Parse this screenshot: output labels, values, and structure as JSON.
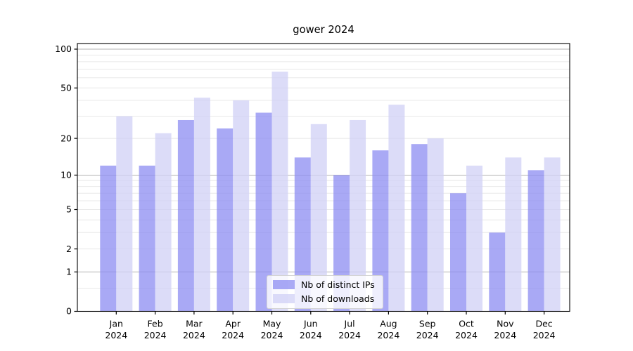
{
  "chart_data": {
    "type": "bar",
    "title": "gower 2024",
    "categories": [
      "Jan 2024",
      "Feb 2024",
      "Mar 2024",
      "Apr 2024",
      "May 2024",
      "Jun 2024",
      "Jul 2024",
      "Aug 2024",
      "Sep 2024",
      "Oct 2024",
      "Nov 2024",
      "Dec 2024"
    ],
    "series": [
      {
        "name": "Nb of distinct IPs",
        "color": "rgba(140,140,242,0.75)",
        "values": [
          12,
          12,
          28,
          24,
          32,
          14,
          10,
          16,
          18,
          7,
          3,
          11
        ]
      },
      {
        "name": "Nb of downloads",
        "color": "rgba(208,208,246,0.75)",
        "values": [
          30,
          22,
          42,
          40,
          67,
          26,
          28,
          37,
          20,
          12,
          14,
          14
        ]
      }
    ],
    "yscale": "log1p",
    "ylim": [
      0,
      111
    ],
    "ytick_labels": [
      0,
      1,
      2,
      5,
      10,
      20,
      50,
      100
    ],
    "major_gridlines": [
      1,
      10,
      100
    ],
    "minor_gridlines": [
      0.5,
      2,
      3,
      4,
      5,
      6,
      7,
      8,
      9,
      20,
      30,
      40,
      50,
      60,
      70,
      80,
      90
    ],
    "grid": true,
    "legend_position": "bottom-center",
    "xlabel": "",
    "ylabel": ""
  },
  "colors": {
    "major_grid": "#b3b3b3",
    "minor_grid": "#e8e8e8",
    "axis": "#000000",
    "tick_text": "#000000"
  }
}
